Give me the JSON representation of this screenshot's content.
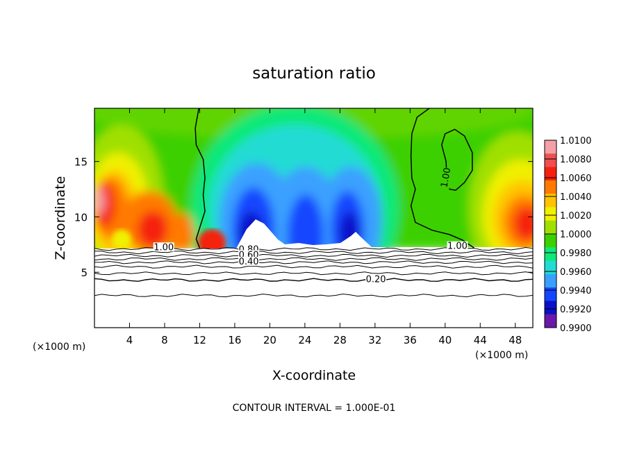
{
  "chart_data": {
    "type": "heatmap",
    "title": "saturation ratio",
    "xlabel": "X-coordinate",
    "ylabel": "Z-coordinate",
    "x_unit": "(×1000 m)",
    "z_unit": "(×1000 m)",
    "footer": "CONTOUR INTERVAL = 1.000E-01",
    "xlim": [
      0,
      50
    ],
    "ylim": [
      0,
      19.8
    ],
    "x_ticks": [
      4,
      8,
      12,
      16,
      20,
      24,
      28,
      32,
      36,
      40,
      44,
      48
    ],
    "y_ticks": [
      5,
      10,
      15
    ],
    "colorbar": {
      "levels": [
        "1.0100",
        "1.0080",
        "1.0060",
        "1.0040",
        "1.0020",
        "1.0000",
        "0.9980",
        "0.9960",
        "0.9940",
        "0.9920",
        "0.9900"
      ],
      "colors": [
        "#f5a0a6",
        "#ee4f4f",
        "#f5200f",
        "#ff7a00",
        "#ffc400",
        "#f0f000",
        "#a0e000",
        "#3cd000",
        "#10e878",
        "#20dcd4",
        "#3aa0ff",
        "#1446ff",
        "#0a10c8",
        "#6a18a8"
      ]
    },
    "contour_labels": [
      {
        "text": "1.00",
        "x": 7.9,
        "z": 7.0
      },
      {
        "text": "0.80",
        "x": 17.6,
        "z": 6.8
      },
      {
        "text": "0.60",
        "x": 17.6,
        "z": 6.3
      },
      {
        "text": "0.40",
        "x": 17.6,
        "z": 5.7
      },
      {
        "text": "0.20",
        "x": 32.1,
        "z": 4.1
      },
      {
        "text": "1.00",
        "x": 41.4,
        "z": 7.1
      },
      {
        "text": "1.00",
        "x": 40.0,
        "z": 13.5
      }
    ],
    "level_lines_z": [
      2.9,
      4.3,
      4.9,
      5.5,
      5.9,
      6.2,
      6.5,
      6.8,
      7.1
    ],
    "upper_contours": [
      [
        [
          11.9,
          19.8
        ],
        [
          11.5,
          18.0
        ],
        [
          11.6,
          16.5
        ],
        [
          12.4,
          15.2
        ],
        [
          12.6,
          13.5
        ],
        [
          12.4,
          12.0
        ],
        [
          12.6,
          10.5
        ],
        [
          12.0,
          9.0
        ],
        [
          11.6,
          8.0
        ],
        [
          12.0,
          7.2
        ]
      ],
      [
        [
          38.2,
          19.8
        ],
        [
          36.8,
          19.0
        ],
        [
          36.2,
          17.5
        ],
        [
          36.1,
          15.5
        ],
        [
          36.2,
          13.5
        ],
        [
          36.6,
          12.5
        ],
        [
          36.1,
          11.0
        ],
        [
          36.6,
          9.5
        ],
        [
          38.5,
          8.8
        ],
        [
          40.5,
          8.4
        ],
        [
          42.0,
          7.9
        ],
        [
          43.3,
          7.2
        ]
      ],
      [
        [
          40.1,
          15.0
        ],
        [
          39.6,
          16.5
        ],
        [
          40.0,
          17.5
        ],
        [
          41.1,
          17.9
        ],
        [
          42.2,
          17.3
        ],
        [
          43.1,
          15.8
        ],
        [
          43.1,
          14.2
        ],
        [
          42.2,
          13.1
        ],
        [
          41.2,
          12.4
        ],
        [
          40.5,
          12.5
        ],
        [
          40.2,
          13.5
        ],
        [
          40.1,
          15.0
        ]
      ]
    ],
    "grid": false
  }
}
